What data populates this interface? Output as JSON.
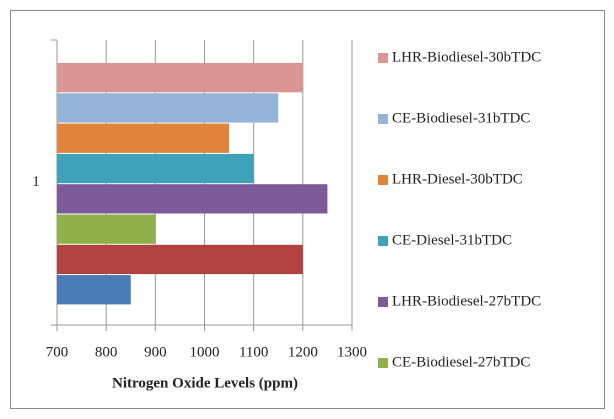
{
  "chart_data": {
    "type": "bar",
    "orientation": "horizontal",
    "x_label": "Nitrogen Oxide Levels (ppm)",
    "categories": [
      "1"
    ],
    "series": [
      {
        "name": "LHR-Biodiesel-30bTDC",
        "color": "#d99694",
        "values": [
          1200
        ]
      },
      {
        "name": "CE-Biodiesel-31bTDC",
        "color": "#95b3d7",
        "values": [
          1150
        ]
      },
      {
        "name": "LHR-Diesel-30bTDC",
        "color": "#e0843b",
        "values": [
          1050
        ]
      },
      {
        "name": "CE-Diesel-31bTDC",
        "color": "#3fa2b8",
        "values": [
          1100
        ]
      },
      {
        "name": "LHR-Biodiesel-27bTDC",
        "color": "#7d5b9b",
        "values": [
          1250
        ]
      },
      {
        "name": "CE-Biodiesel-27bTDC",
        "color": "#8fb04a",
        "values": [
          900
        ]
      },
      {
        "name": null,
        "color": "#b04342",
        "values": [
          1200
        ]
      },
      {
        "name": null,
        "color": "#4a7ab5",
        "values": [
          850
        ]
      }
    ],
    "xlim": [
      700,
      1300
    ],
    "xticks": [
      700,
      800,
      900,
      1000,
      1100,
      1200,
      1300
    ],
    "grid": true
  }
}
